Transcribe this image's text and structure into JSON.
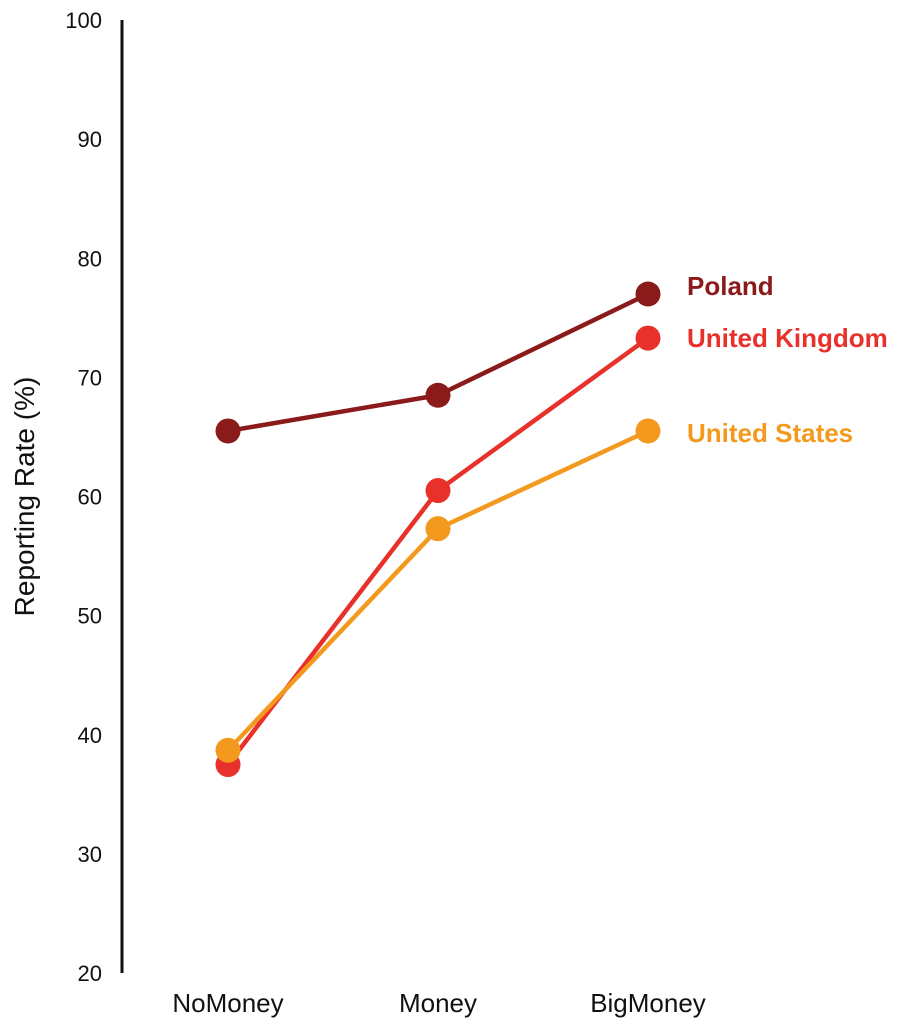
{
  "chart_data": {
    "type": "line",
    "title": "",
    "xlabel": "",
    "ylabel": "Reporting Rate (%)",
    "categories": [
      "NoMoney",
      "Money",
      "BigMoney"
    ],
    "ylim": [
      20,
      100
    ],
    "yticks": [
      20,
      30,
      40,
      50,
      60,
      70,
      80,
      90,
      100
    ],
    "grid": false,
    "legend": "direct labels at right end of each line",
    "series": [
      {
        "name": "Poland",
        "color": "#8b1a1a",
        "values": [
          65.5,
          68.5,
          77.0
        ]
      },
      {
        "name": "United Kingdom",
        "color": "#e8312a",
        "values": [
          37.5,
          60.5,
          73.3
        ]
      },
      {
        "name": "United States",
        "color": "#f39a1e",
        "values": [
          38.7,
          57.3,
          65.5
        ]
      }
    ]
  }
}
